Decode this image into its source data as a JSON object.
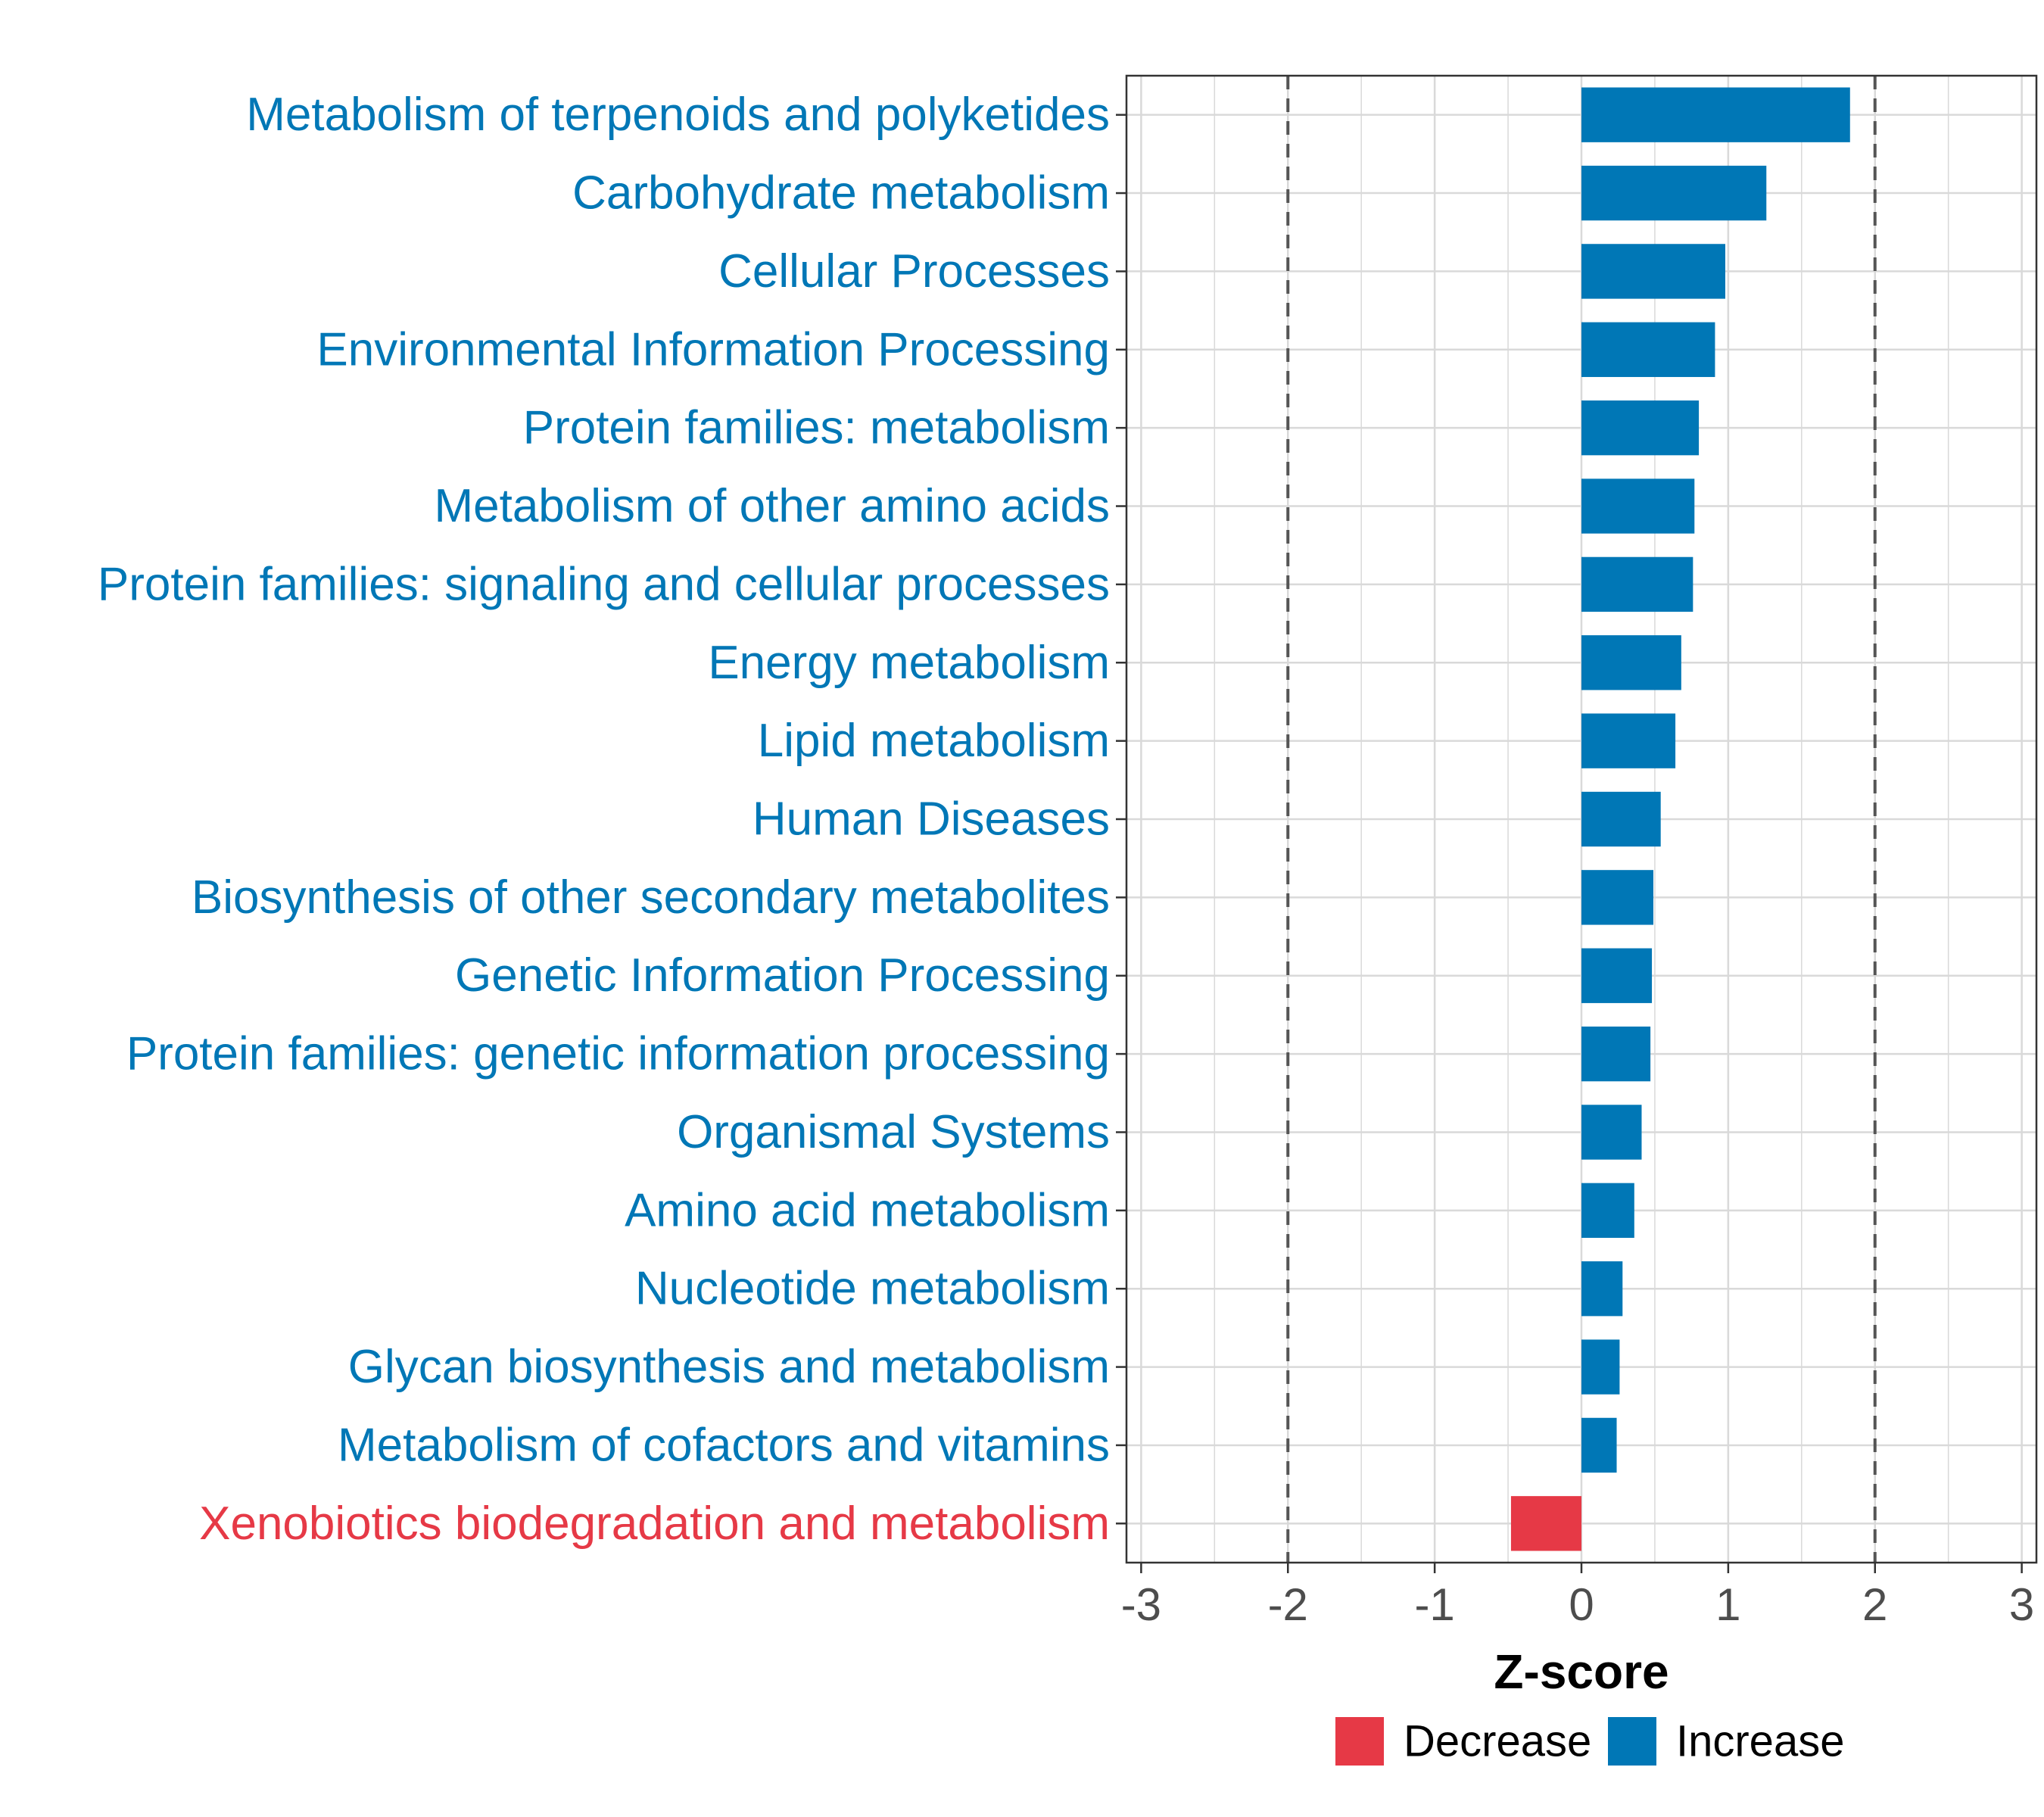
{
  "chart_data": {
    "type": "bar",
    "orientation": "horizontal",
    "title": "",
    "xlabel": "Z-score",
    "ylabel": "",
    "xlim": [
      -3.1,
      3.1
    ],
    "xticks": [
      -3,
      -2,
      -1,
      0,
      1,
      2,
      3
    ],
    "grid": true,
    "reference_lines": [
      -2,
      2
    ],
    "categories": [
      "Metabolism of terpenoids and polyketides",
      "Carbohydrate metabolism",
      "Cellular Processes",
      "Environmental Information Processing",
      "Protein families: metabolism",
      "Metabolism of other amino acids",
      "Protein families: signaling and cellular processes",
      "Energy metabolism",
      "Lipid metabolism",
      "Human Diseases",
      "Biosynthesis of other secondary metabolites",
      "Genetic Information Processing",
      "Protein families: genetic information processing",
      "Organismal Systems",
      "Amino acid metabolism",
      "Nucleotide metabolism",
      "Glycan biosynthesis and metabolism",
      "Metabolism of cofactors and vitamins",
      "Xenobiotics biodegradation and metabolism"
    ],
    "values": [
      1.83,
      1.26,
      0.98,
      0.91,
      0.8,
      0.77,
      0.76,
      0.68,
      0.64,
      0.54,
      0.49,
      0.48,
      0.47,
      0.41,
      0.36,
      0.28,
      0.26,
      0.24,
      -0.48
    ],
    "legend": {
      "position": "bottom",
      "entries": [
        {
          "label": "Decrease",
          "color": "#e63946"
        },
        {
          "label": "Increase",
          "color": "#0077b6"
        }
      ]
    },
    "colors": {
      "increase": "#0077b6",
      "decrease": "#e63946",
      "grid": "#d9d9d9",
      "axis": "#333333",
      "refline": "#555555",
      "tick_label": "#4d4d4d"
    }
  }
}
